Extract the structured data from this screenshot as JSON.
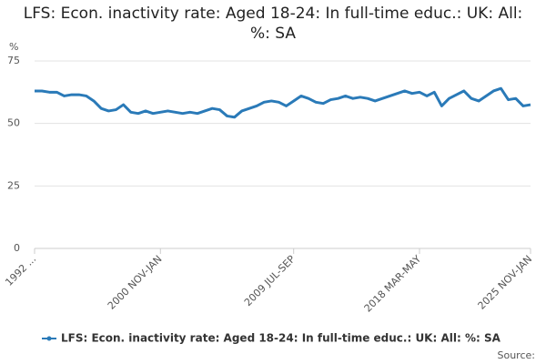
{
  "chart_data": {
    "type": "line",
    "title": "LFS: Econ. inactivity rate: Aged 18-24: In full-time educ.: UK: All: %: SA",
    "y_unit": "%",
    "source": "Source:",
    "categories": [
      "1992 ...",
      null,
      null,
      null,
      null,
      null,
      null,
      null,
      null,
      null,
      null,
      null,
      null,
      null,
      null,
      null,
      null,
      "2000 NOV-JAN",
      null,
      null,
      null,
      null,
      null,
      null,
      null,
      null,
      null,
      null,
      null,
      null,
      null,
      null,
      null,
      null,
      null,
      "2009 JUL-SEP",
      null,
      null,
      null,
      null,
      null,
      null,
      null,
      null,
      null,
      null,
      null,
      null,
      null,
      null,
      null,
      null,
      "2018 MAR-MAY",
      null,
      null,
      null,
      null,
      null,
      null,
      null,
      null,
      null,
      null,
      null,
      null,
      null,
      null,
      "2025 NOV-JAN"
    ],
    "series": [
      {
        "name": "LFS: Econ. inactivity rate: Aged 18-24: In full-time educ.: UK: All: %: SA",
        "color": "#2a7ab8",
        "values": [
          63,
          63,
          62.5,
          62.5,
          61,
          61.5,
          61.5,
          61,
          59,
          56,
          55,
          55.5,
          57.5,
          54.5,
          54,
          55,
          54,
          54.5,
          55,
          54.5,
          54,
          54.5,
          54,
          55,
          56,
          55.5,
          53,
          52.5,
          55,
          56,
          57,
          58.5,
          59,
          58.5,
          57,
          59,
          61,
          60,
          58.5,
          58,
          59.5,
          60,
          61,
          60,
          60.5,
          60,
          59,
          60,
          61,
          62,
          63,
          62,
          62.5,
          61,
          62.5,
          57,
          60,
          61.5,
          63,
          60,
          59,
          61,
          63,
          64,
          59.5,
          60,
          57,
          57.5
        ]
      }
    ],
    "ylim": [
      0,
      75
    ],
    "yticks": [
      0,
      25,
      50,
      75
    ],
    "grid": true
  }
}
